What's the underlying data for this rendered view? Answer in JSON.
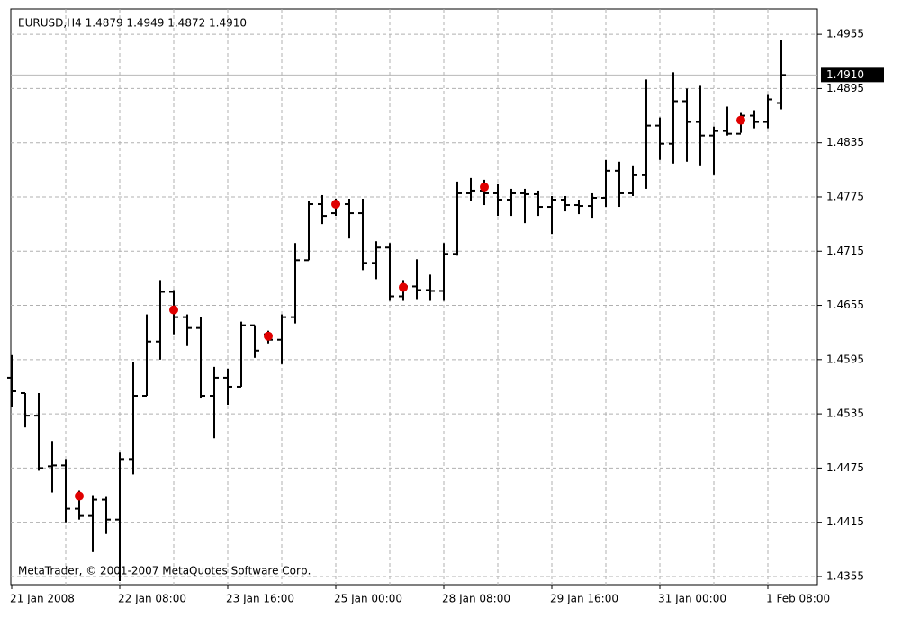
{
  "chart_data": {
    "type": "ohlc",
    "title": "EURUSD,H4  1.4879 1.4949 1.4872 1.4910",
    "watermark": "MetaTrader, © 2001-2007 MetaQuotes Software Corp.",
    "color": "#000000",
    "grid": true,
    "categories": [
      "21 Jan 2008",
      null,
      null,
      null,
      null,
      null,
      null,
      null,
      "22 Jan 08:00",
      null,
      null,
      null,
      null,
      null,
      null,
      null,
      "23 Jan 16:00",
      null,
      null,
      null,
      null,
      null,
      null,
      null,
      "25 Jan 00:00",
      null,
      null,
      null,
      null,
      null,
      null,
      null,
      "28 Jan 08:00",
      null,
      null,
      null,
      null,
      null,
      null,
      null,
      "29 Jan 16:00",
      null,
      null,
      null,
      null,
      null,
      null,
      null,
      "31 Jan 00:00",
      null,
      null,
      null,
      null,
      null,
      null,
      null,
      "1 Feb 08:00",
      null
    ],
    "open": [
      1.4575,
      1.4558,
      1.4533,
      1.4477,
      1.4478,
      1.443,
      1.4422,
      1.444,
      1.4418,
      1.4485,
      1.4555,
      1.4615,
      1.467,
      1.4642,
      1.463,
      1.4555,
      1.4575,
      1.4565,
      1.4633,
      1.4623,
      1.4617,
      1.4642,
      1.4705,
      1.4767,
      1.4757,
      1.4767,
      1.4757,
      1.4702,
      1.4719,
      1.4665,
      1.4676,
      1.4672,
      1.4671,
      1.4712,
      1.4779,
      1.4782,
      1.4779,
      1.4772,
      1.4779,
      1.4778,
      1.4764,
      1.4772,
      1.4766,
      1.4765,
      1.4774,
      1.4804,
      1.4779,
      1.4799,
      1.4854,
      1.4834,
      1.4881,
      1.4858,
      1.4843,
      1.4848,
      1.4845,
      1.4865,
      1.4858,
      1.4879
    ],
    "high": [
      1.46,
      1.4558,
      1.4558,
      1.4505,
      1.4485,
      1.445,
      1.4445,
      1.4443,
      1.4492,
      1.4592,
      1.4645,
      1.4683,
      1.4672,
      1.4645,
      1.4642,
      1.4587,
      1.4585,
      1.4637,
      1.4633,
      1.4627,
      1.4645,
      1.4724,
      1.477,
      1.4777,
      1.4773,
      1.4773,
      1.4773,
      1.4726,
      1.4724,
      1.4683,
      1.4706,
      1.4689,
      1.4724,
      1.4792,
      1.4796,
      1.4794,
      1.4789,
      1.4784,
      1.4784,
      1.4782,
      1.4776,
      1.4776,
      1.4772,
      1.4779,
      1.4816,
      1.4814,
      1.4809,
      1.4905,
      1.4863,
      1.4913,
      1.4895,
      1.4898,
      1.4853,
      1.4875,
      1.4868,
      1.4871,
      1.4888,
      1.4949
    ],
    "low": [
      1.4543,
      1.452,
      1.4472,
      1.4448,
      1.4415,
      1.4418,
      1.4382,
      1.4402,
      1.435,
      1.4468,
      1.4555,
      1.4595,
      1.4623,
      1.461,
      1.4552,
      1.4508,
      1.4545,
      1.4565,
      1.4597,
      1.4613,
      1.459,
      1.4635,
      1.4705,
      1.4745,
      1.4754,
      1.4729,
      1.4694,
      1.4684,
      1.466,
      1.466,
      1.4662,
      1.466,
      1.466,
      1.471,
      1.477,
      1.4766,
      1.4754,
      1.4754,
      1.4746,
      1.4754,
      1.4734,
      1.4759,
      1.4756,
      1.4752,
      1.4764,
      1.4764,
      1.4776,
      1.4784,
      1.4816,
      1.4812,
      1.4814,
      1.4809,
      1.4799,
      1.4843,
      1.4846,
      1.4851,
      1.4851,
      1.4872
    ],
    "close": [
      1.456,
      1.4533,
      1.4475,
      1.4478,
      1.443,
      1.4422,
      1.444,
      1.4418,
      1.4485,
      1.4555,
      1.4615,
      1.467,
      1.4642,
      1.463,
      1.4555,
      1.4575,
      1.4565,
      1.4633,
      1.4605,
      1.4617,
      1.4642,
      1.4705,
      1.4767,
      1.4754,
      1.4767,
      1.4757,
      1.4702,
      1.4719,
      1.4665,
      1.4676,
      1.4672,
      1.4671,
      1.4712,
      1.4779,
      1.4782,
      1.4779,
      1.4772,
      1.4779,
      1.4778,
      1.4764,
      1.4772,
      1.4766,
      1.4765,
      1.4774,
      1.4804,
      1.4779,
      1.4799,
      1.4854,
      1.4834,
      1.4881,
      1.4858,
      1.4843,
      1.4848,
      1.4845,
      1.4865,
      1.4858,
      1.4883,
      1.491
    ],
    "markers": {
      "color": "#e00000",
      "values": [
        null,
        null,
        null,
        null,
        null,
        1.4444,
        null,
        null,
        null,
        null,
        null,
        null,
        1.465,
        null,
        null,
        null,
        null,
        null,
        null,
        1.4621,
        null,
        null,
        null,
        null,
        1.4767,
        null,
        null,
        null,
        null,
        1.4675,
        null,
        null,
        null,
        null,
        null,
        1.4786,
        null,
        null,
        null,
        null,
        null,
        null,
        null,
        null,
        null,
        null,
        null,
        null,
        null,
        null,
        null,
        null,
        null,
        null,
        1.486,
        null,
        null,
        null
      ]
    },
    "current_price": {
      "value": 1.491,
      "label": "1.4910"
    },
    "ylim": [
      1.4346,
      1.4983
    ],
    "yticks": [
      1.4955,
      1.4895,
      1.4835,
      1.4775,
      1.4715,
      1.4655,
      1.4595,
      1.4535,
      1.4475,
      1.4415,
      1.4355
    ]
  }
}
